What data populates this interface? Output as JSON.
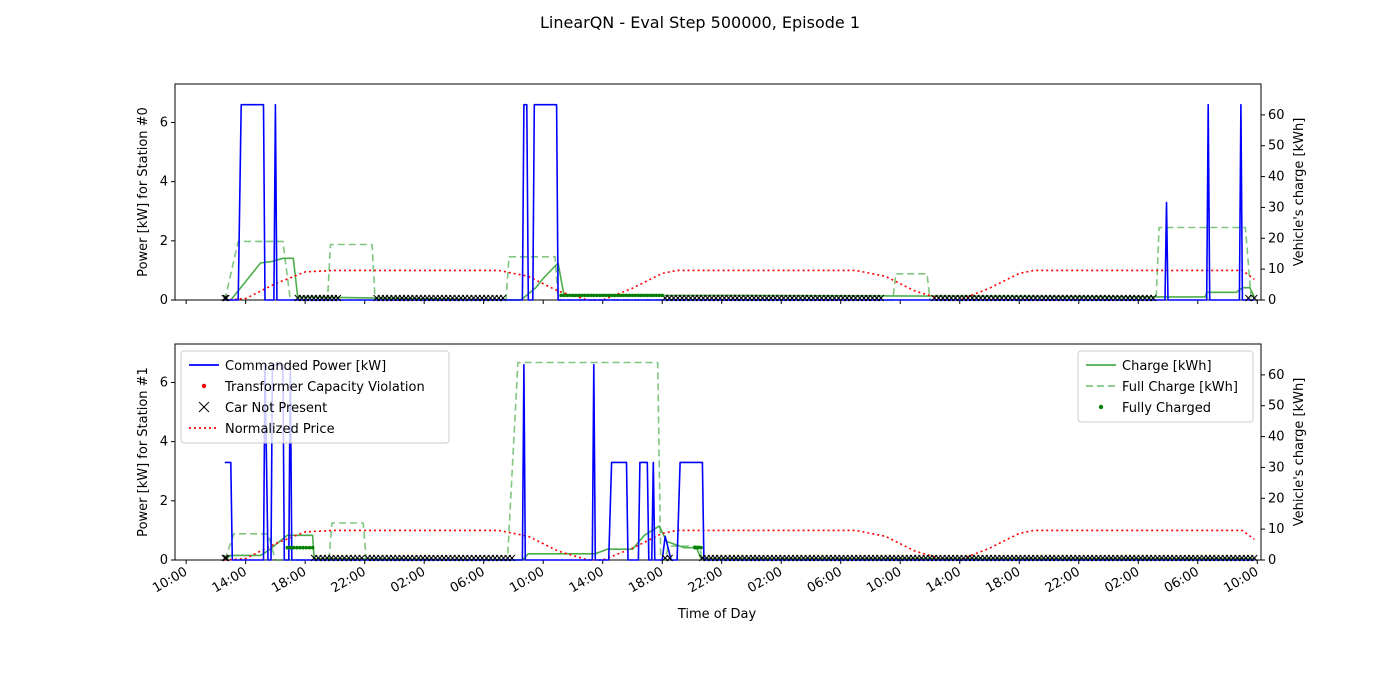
{
  "title": "LinearQN - Eval Step 500000, Episode 1",
  "xlabel": "Time of Day",
  "x_axis": {
    "start_hour": 9.25,
    "end_hour": 82.25,
    "ticks": [
      {
        "t": 10,
        "label": "10:00"
      },
      {
        "t": 14,
        "label": "14:00"
      },
      {
        "t": 18,
        "label": "18:00"
      },
      {
        "t": 22,
        "label": "22:00"
      },
      {
        "t": 26,
        "label": "02:00"
      },
      {
        "t": 30,
        "label": "06:00"
      },
      {
        "t": 34,
        "label": "10:00"
      },
      {
        "t": 38,
        "label": "14:00"
      },
      {
        "t": 42,
        "label": "18:00"
      },
      {
        "t": 46,
        "label": "22:00"
      },
      {
        "t": 50,
        "label": "02:00"
      },
      {
        "t": 54,
        "label": "06:00"
      },
      {
        "t": 58,
        "label": "10:00"
      },
      {
        "t": 62,
        "label": "14:00"
      },
      {
        "t": 66,
        "label": "18:00"
      },
      {
        "t": 70,
        "label": "22:00"
      },
      {
        "t": 74,
        "label": "02:00"
      },
      {
        "t": 78,
        "label": "06:00"
      },
      {
        "t": 82,
        "label": "10:00"
      }
    ]
  },
  "legend_left": [
    {
      "label": "Commanded Power [kW]",
      "key": "power",
      "color": "#0000ff"
    },
    {
      "label": "Transformer Capacity Violation",
      "key": "violation",
      "color": "#ff0000"
    },
    {
      "label": "Car Not Present",
      "key": "absent",
      "color": "#000000"
    },
    {
      "label": "Normalized Price",
      "key": "price",
      "color": "#ff0000"
    }
  ],
  "legend_right": [
    {
      "label": "Charge [kWh]",
      "key": "charge",
      "color": "#2ca02c"
    },
    {
      "label": "Full Charge [kWh]",
      "key": "full",
      "color": "#2ca02c"
    },
    {
      "label": "Fully Charged",
      "key": "fully",
      "color": "#008000"
    }
  ],
  "chart_data": [
    {
      "type": "line",
      "ylabel": "Power [kW] for Station #0",
      "ylabel_right": "Vehicle's charge [kWh]",
      "ylim": [
        0,
        7.3
      ],
      "ylim_right": [
        0,
        70
      ],
      "yticks": [
        0,
        2,
        4,
        6
      ],
      "yticks_right": [
        0,
        10,
        20,
        30,
        40,
        50,
        60
      ],
      "series": [
        {
          "key": "power",
          "axis": "left",
          "points": [
            [
              12.6,
              0
            ],
            [
              13.5,
              0
            ],
            [
              13.7,
              6.6
            ],
            [
              15.2,
              6.6
            ],
            [
              15.3,
              0
            ],
            [
              15.9,
              0
            ],
            [
              16.0,
              6.6
            ],
            [
              16.1,
              0
            ],
            [
              32.6,
              0
            ],
            [
              32.7,
              6.6
            ],
            [
              32.9,
              6.6
            ],
            [
              33.0,
              0
            ],
            [
              33.3,
              0
            ],
            [
              33.4,
              6.6
            ],
            [
              34.9,
              6.6
            ],
            [
              35.0,
              0
            ],
            [
              75.8,
              0
            ],
            [
              75.9,
              3.3
            ],
            [
              76.0,
              0
            ],
            [
              78.6,
              0
            ],
            [
              78.7,
              6.6
            ],
            [
              78.8,
              0
            ],
            [
              80.8,
              0
            ],
            [
              80.9,
              6.6
            ],
            [
              81.0,
              0
            ],
            [
              81.8,
              0
            ]
          ]
        },
        {
          "key": "price",
          "axis": "left",
          "points": [
            [
              12.6,
              0
            ],
            [
              14,
              0.05
            ],
            [
              16,
              0.55
            ],
            [
              18,
              0.95
            ],
            [
              20,
              1.0
            ],
            [
              31,
              1.0
            ],
            [
              33,
              0.8
            ],
            [
              35,
              0.3
            ],
            [
              37,
              0
            ],
            [
              38,
              0
            ],
            [
              40,
              0.4
            ],
            [
              42,
              0.9
            ],
            [
              43,
              1.0
            ],
            [
              55,
              1.0
            ],
            [
              57,
              0.8
            ],
            [
              59,
              0.3
            ],
            [
              61,
              0
            ],
            [
              62,
              0
            ],
            [
              64,
              0.4
            ],
            [
              66,
              0.9
            ],
            [
              67,
              1.0
            ],
            [
              81,
              1.0
            ],
            [
              81.8,
              0.7
            ]
          ]
        },
        {
          "key": "charge",
          "axis": "right",
          "points": [
            [
              12.6,
              0
            ],
            [
              13.0,
              0
            ],
            [
              14.0,
              6
            ],
            [
              15.0,
              12
            ],
            [
              15.8,
              12.5
            ],
            [
              16.5,
              13.5
            ],
            [
              17.2,
              13.5
            ],
            [
              17.5,
              1
            ],
            [
              32.5,
              0
            ],
            [
              33.5,
              4
            ],
            [
              34.0,
              7
            ],
            [
              35.0,
              12
            ],
            [
              35.4,
              1.5
            ],
            [
              47,
              1.5
            ],
            [
              75.8,
              1
            ],
            [
              78.5,
              1
            ],
            [
              78.6,
              2.5
            ],
            [
              80.6,
              2.5
            ],
            [
              81.0,
              4
            ],
            [
              81.5,
              4
            ],
            [
              81.8,
              1
            ]
          ]
        },
        {
          "key": "full",
          "axis": "right",
          "points": [
            [
              12.6,
              0
            ],
            [
              13.5,
              19
            ],
            [
              16.5,
              19
            ],
            [
              17.0,
              0
            ],
            [
              19.5,
              0
            ],
            [
              19.7,
              18
            ],
            [
              22.5,
              18
            ],
            [
              22.7,
              0
            ],
            [
              31.5,
              0
            ],
            [
              31.7,
              14
            ],
            [
              34.8,
              14
            ],
            [
              35.0,
              0
            ],
            [
              57.5,
              0
            ],
            [
              57.7,
              8.5
            ],
            [
              59.8,
              8.5
            ],
            [
              60.0,
              0
            ],
            [
              75.2,
              0
            ],
            [
              75.4,
              23.5
            ],
            [
              81.2,
              23.5
            ],
            [
              81.6,
              0
            ]
          ]
        }
      ],
      "absent_segments": [
        [
          12.6,
          12.7
        ],
        [
          17.5,
          20.2
        ],
        [
          22.8,
          31.3
        ],
        [
          42.2,
          56.7
        ],
        [
          60.3,
          75.0
        ],
        [
          81.4,
          81.8
        ]
      ],
      "fully_segments": [
        [
          35.2,
          42.0
        ]
      ],
      "fully_value": 1.5
    },
    {
      "type": "line",
      "ylabel": "Power [kW] for Station #1",
      "ylabel_right": "Vehicle's charge [kWh]",
      "ylim": [
        0,
        7.3
      ],
      "ylim_right": [
        0,
        70
      ],
      "yticks": [
        0,
        2,
        4,
        6
      ],
      "yticks_right": [
        0,
        10,
        20,
        30,
        40,
        50,
        60
      ],
      "series": [
        {
          "key": "power",
          "axis": "left",
          "points": [
            [
              12.6,
              3.3
            ],
            [
              13.0,
              3.3
            ],
            [
              13.1,
              0
            ],
            [
              15.2,
              0
            ],
            [
              15.3,
              6.6
            ],
            [
              15.5,
              0
            ],
            [
              15.7,
              0
            ],
            [
              15.8,
              6.6
            ],
            [
              16.5,
              6.6
            ],
            [
              16.6,
              0
            ],
            [
              16.9,
              0
            ],
            [
              17.0,
              6.6
            ],
            [
              17.1,
              0
            ],
            [
              32.6,
              0
            ],
            [
              32.7,
              6.6
            ],
            [
              32.8,
              0
            ],
            [
              37.3,
              0
            ],
            [
              37.4,
              6.6
            ],
            [
              37.5,
              0
            ],
            [
              38.4,
              0
            ],
            [
              38.6,
              3.3
            ],
            [
              39.6,
              3.3
            ],
            [
              39.7,
              0
            ],
            [
              40.4,
              0
            ],
            [
              40.5,
              3.3
            ],
            [
              41.0,
              3.3
            ],
            [
              41.1,
              0
            ],
            [
              41.3,
              0
            ],
            [
              41.4,
              3.3
            ],
            [
              41.5,
              0
            ],
            [
              42.0,
              0
            ],
            [
              42.2,
              0.8
            ],
            [
              42.6,
              0
            ],
            [
              43.0,
              0
            ],
            [
              43.2,
              3.3
            ],
            [
              44.7,
              3.3
            ],
            [
              44.8,
              0
            ],
            [
              81.8,
              0
            ]
          ]
        },
        {
          "key": "price",
          "axis": "left",
          "points": [
            [
              12.6,
              0
            ],
            [
              14,
              0.05
            ],
            [
              16,
              0.55
            ],
            [
              18,
              0.95
            ],
            [
              20,
              1.0
            ],
            [
              31,
              1.0
            ],
            [
              33,
              0.8
            ],
            [
              35,
              0.3
            ],
            [
              37,
              0
            ],
            [
              38,
              0
            ],
            [
              40,
              0.4
            ],
            [
              42,
              0.9
            ],
            [
              43,
              1.0
            ],
            [
              55,
              1.0
            ],
            [
              57,
              0.8
            ],
            [
              59,
              0.3
            ],
            [
              61,
              0
            ],
            [
              62,
              0
            ],
            [
              64,
              0.4
            ],
            [
              66,
              0.9
            ],
            [
              67,
              1.0
            ],
            [
              81,
              1.0
            ],
            [
              81.8,
              0.7
            ]
          ]
        },
        {
          "key": "charge",
          "axis": "right",
          "points": [
            [
              12.6,
              0
            ],
            [
              13.0,
              1.5
            ],
            [
              15.0,
              1.5
            ],
            [
              15.5,
              3
            ],
            [
              16.8,
              8
            ],
            [
              18.5,
              8
            ],
            [
              18.6,
              0.5
            ],
            [
              32.6,
              0
            ],
            [
              33.0,
              2
            ],
            [
              37.5,
              2
            ],
            [
              38.3,
              3.5
            ],
            [
              40.0,
              3.5
            ],
            [
              40.8,
              8
            ],
            [
              41.8,
              11
            ],
            [
              42.3,
              6
            ],
            [
              43.5,
              4
            ],
            [
              44.3,
              4
            ],
            [
              44.6,
              0.5
            ],
            [
              81.8,
              0.5
            ]
          ]
        },
        {
          "key": "full",
          "axis": "right",
          "points": [
            [
              12.6,
              0
            ],
            [
              13.2,
              8.5
            ],
            [
              15.5,
              8.5
            ],
            [
              16.0,
              0
            ],
            [
              19.6,
              0
            ],
            [
              19.8,
              12
            ],
            [
              21.9,
              12
            ],
            [
              22.1,
              0
            ],
            [
              31.6,
              0
            ],
            [
              32.3,
              64
            ],
            [
              41.7,
              64
            ],
            [
              41.9,
              0
            ],
            [
              42.2,
              0
            ],
            [
              42.4,
              4.5
            ],
            [
              44.5,
              4.5
            ],
            [
              44.7,
              0
            ]
          ]
        }
      ],
      "absent_segments": [
        [
          12.6,
          12.7
        ],
        [
          18.6,
          21.8
        ],
        [
          22.2,
          31.9
        ],
        [
          42.2,
          42.5
        ],
        [
          44.7,
          81.8
        ]
      ],
      "fully_segments": [
        [
          16.8,
          18.5
        ],
        [
          44.2,
          44.6
        ]
      ],
      "fully_value": 4
    }
  ]
}
